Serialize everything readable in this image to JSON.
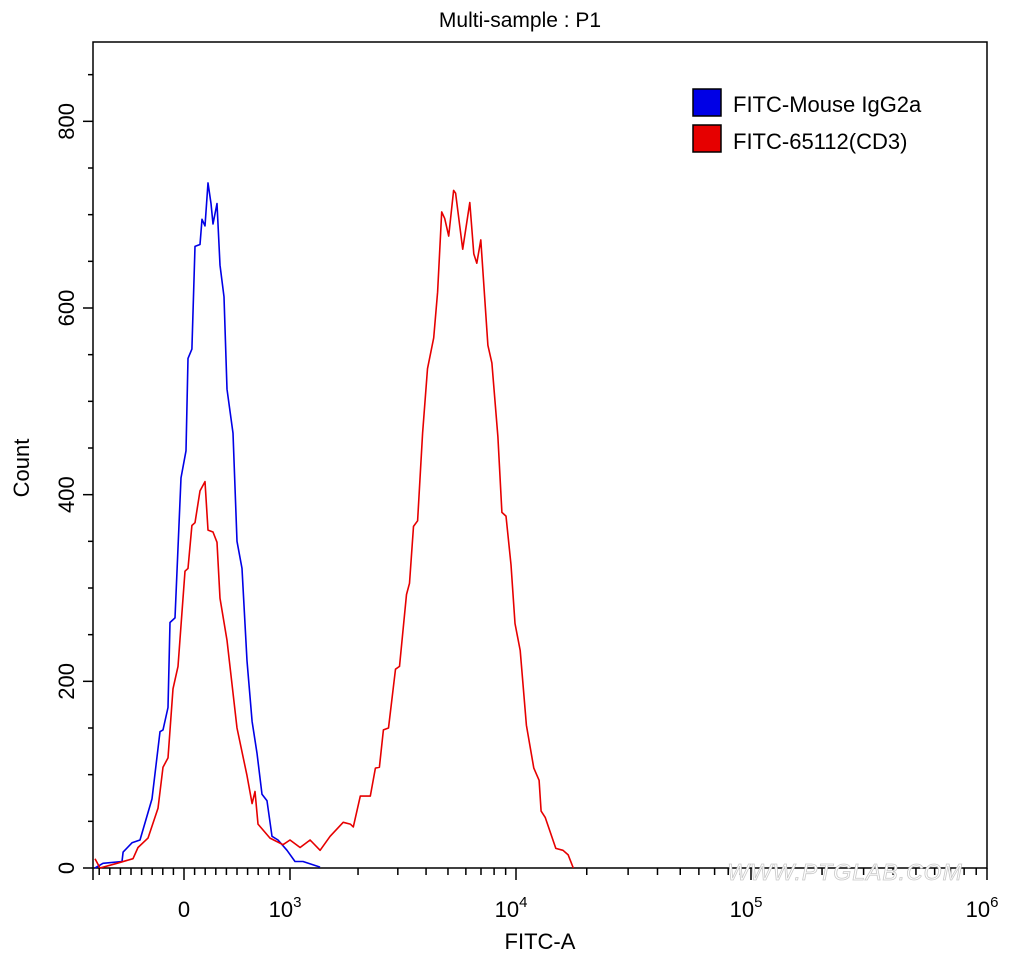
{
  "chart_data": {
    "type": "line",
    "title": "Multi-sample : P1",
    "xlabel": "FITC-A",
    "ylabel": "Count",
    "x_scale": "biexponential (linear below 10^3, log above)",
    "xlim": [
      -858,
      1000000
    ],
    "ylim": [
      0,
      885
    ],
    "grid": false,
    "legend_position": "top-right",
    "x_ticks": [
      {
        "value": 0,
        "label": "0",
        "sup": ""
      },
      {
        "value": 1000,
        "label": "10",
        "sup": "3"
      },
      {
        "value": 10000,
        "label": "10",
        "sup": "4"
      },
      {
        "value": 100000,
        "label": "10",
        "sup": "5"
      },
      {
        "value": 1000000,
        "label": "10",
        "sup": "6"
      }
    ],
    "y_ticks": [
      0,
      200,
      400,
      600,
      800
    ],
    "y_tick_labels": [
      "0",
      "200",
      "400",
      "600",
      "800"
    ],
    "watermark": "WWW.PTGLAB.COM",
    "series": [
      {
        "name": "FITC-Mouse IgG2a",
        "color": "#0000e6",
        "x": [
          -840,
          -764,
          -585,
          -575,
          -491,
          -415,
          -302,
          -226,
          -198,
          -151,
          -132,
          -85,
          -28,
          19,
          38,
          75,
          104,
          151,
          170,
          198,
          226,
          255,
          274,
          311,
          340,
          377,
          406,
          462,
          500,
          547,
          594,
          642,
          689,
          736,
          783,
          830,
          887,
          972,
          1052,
          1142,
          1359
        ],
        "y": [
          0,
          5,
          7,
          17,
          27,
          30,
          74,
          146,
          148,
          172,
          263,
          268,
          418,
          447,
          546,
          556,
          666,
          668,
          695,
          688,
          734,
          712,
          690,
          712,
          646,
          612,
          513,
          466,
          350,
          321,
          222,
          157,
          123,
          79,
          72,
          34,
          30,
          19,
          7,
          7,
          1
        ]
      },
      {
        "name": "FITC-65112(CD3)",
        "color": "#e60000",
        "x": [
          -840,
          -792,
          -632,
          -481,
          -434,
          -340,
          -245,
          -198,
          -151,
          -104,
          -57,
          9,
          38,
          75,
          104,
          151,
          198,
          226,
          274,
          311,
          340,
          406,
          500,
          594,
          642,
          670,
          698,
          811,
          934,
          1000,
          1108,
          1227,
          1359,
          1505,
          1720,
          1848,
          1905,
          2046,
          2266,
          2386,
          2487,
          2590,
          2727,
          2929,
          3051,
          3277,
          3379,
          3521,
          3668,
          3860,
          4060,
          4322,
          4500,
          4690,
          4836,
          5036,
          5298,
          5407,
          5811,
          6244,
          6505,
          6708,
          6988,
          7509,
          7822,
          8318,
          8665,
          9027,
          9501,
          9898,
          10418,
          11077,
          11904,
          12534,
          12792,
          13330,
          14765,
          15849,
          16681,
          17538
        ],
        "y": [
          10,
          0,
          5,
          10,
          22,
          32,
          64,
          108,
          118,
          192,
          216,
          318,
          321,
          367,
          370,
          404,
          414,
          362,
          360,
          349,
          289,
          244,
          150,
          99,
          69,
          82,
          47,
          32,
          25,
          30,
          22,
          30,
          19,
          34,
          49,
          47,
          44,
          77,
          77,
          107,
          108,
          148,
          150,
          213,
          216,
          293,
          305,
          366,
          372,
          466,
          535,
          568,
          617,
          703,
          696,
          677,
          726,
          723,
          663,
          713,
          658,
          648,
          673,
          560,
          541,
          462,
          381,
          377,
          325,
          262,
          233,
          153,
          107,
          94,
          61,
          54,
          21,
          19,
          14,
          0
        ]
      }
    ]
  }
}
